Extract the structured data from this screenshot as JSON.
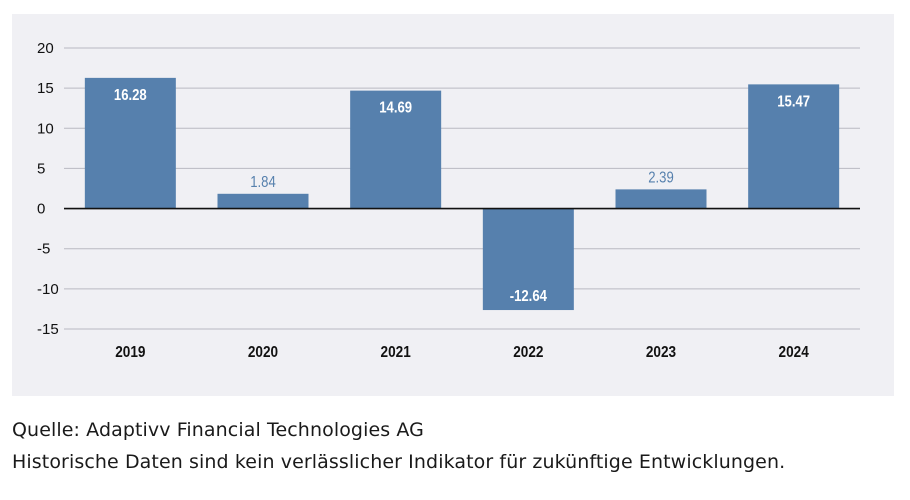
{
  "chart_data": {
    "type": "bar",
    "title": "",
    "xlabel": "",
    "ylabel": "",
    "categories": [
      "2019",
      "2020",
      "2021",
      "2022",
      "2023",
      "2024"
    ],
    "values": [
      16.28,
      1.84,
      14.69,
      -12.64,
      2.39,
      15.47
    ],
    "value_labels": [
      "16.28",
      "1.84",
      "14.69",
      "-12.64",
      "2.39",
      "15.47"
    ],
    "ylim": [
      -15,
      20
    ],
    "yticks": [
      20,
      15,
      10,
      5,
      0,
      -5,
      -10,
      -15
    ],
    "ytick_labels": [
      "20",
      "15",
      "10",
      "5",
      "0",
      "-5",
      "-10",
      "-15"
    ],
    "grid": true,
    "legend": "none"
  },
  "colors": {
    "bar": "#5680ad",
    "label_inside": "#ffffff",
    "label_outside": "#5680ad",
    "grid": "#b9b9c2",
    "zero_line": "#111111",
    "panel_background": "#f0f0f4",
    "tick_text": "#111111"
  },
  "footnotes": {
    "source": "Quelle: Adaptivv Financial Technologies AG",
    "disclaimer": "Historische Daten sind kein verlässlicher Indikator für zukünftige Entwicklungen."
  }
}
